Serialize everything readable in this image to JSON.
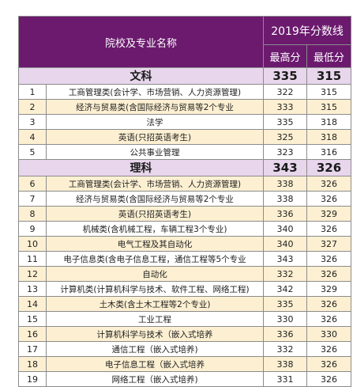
{
  "header": {
    "name_col": "院校及专业名称",
    "year_title": "2019年分数线",
    "max_label": "最高分",
    "min_label": "最低分"
  },
  "sections": [
    {
      "title": "文科",
      "max": "335",
      "min": "315",
      "rows": [
        {
          "no": "1",
          "name": "工商管理类(会计学、市场营销、人力资源管理)",
          "max": "322",
          "min": "315"
        },
        {
          "no": "2",
          "name": "经济与贸易类(含国际经济与贸易等2个专业",
          "max": "333",
          "min": "315"
        },
        {
          "no": "3",
          "name": "法学",
          "max": "335",
          "min": "318"
        },
        {
          "no": "4",
          "name": "英语(只招英语考生)",
          "max": "325",
          "min": "318"
        },
        {
          "no": "5",
          "name": "公共事业管理",
          "max": "323",
          "min": "316"
        }
      ]
    },
    {
      "title": "理科",
      "max": "343",
      "min": "326",
      "rows": [
        {
          "no": "6",
          "name": "工商管理类(会计学、市场营销、人力资源管理)",
          "max": "338",
          "min": "326"
        },
        {
          "no": "7",
          "name": "经济与贸易类(含国际经济与贸易等2个专业",
          "max": "338",
          "min": "326"
        },
        {
          "no": "8",
          "name": "英语(只招英语考生)",
          "max": "336",
          "min": "329"
        },
        {
          "no": "9",
          "name": "机械类(含机械工程，车辆工程3个专业)",
          "max": "340",
          "min": "326"
        },
        {
          "no": "10",
          "name": "电气工程及其自动化",
          "max": "340",
          "min": "327"
        },
        {
          "no": "11",
          "name": "电子信息类(含电子信息工程，通信工程等5个专业",
          "max": "343",
          "min": "326"
        },
        {
          "no": "12",
          "name": "自动化",
          "max": "332",
          "min": "326"
        },
        {
          "no": "13",
          "name": "计算机类(计算机科学与技术、软件工程、网络工程)",
          "max": "342",
          "min": "329"
        },
        {
          "no": "14",
          "name": "土木类(含土木工程等2个专业)",
          "max": "335",
          "min": "326"
        },
        {
          "no": "15",
          "name": "工业工程",
          "max": "330",
          "min": "326"
        },
        {
          "no": "16",
          "name": "计算机科学与技术（嵌入式培养",
          "max": "336",
          "min": "330"
        },
        {
          "no": "17",
          "name": "通信工程（嵌入式培养)",
          "max": "332",
          "min": "326"
        },
        {
          "no": "18",
          "name": "电子信息工程（嵌入式培养",
          "max": "338",
          "min": "326"
        },
        {
          "no": "19",
          "name": "网络工程（嵌入式培养)",
          "max": "331",
          "min": "326"
        }
      ]
    }
  ]
}
